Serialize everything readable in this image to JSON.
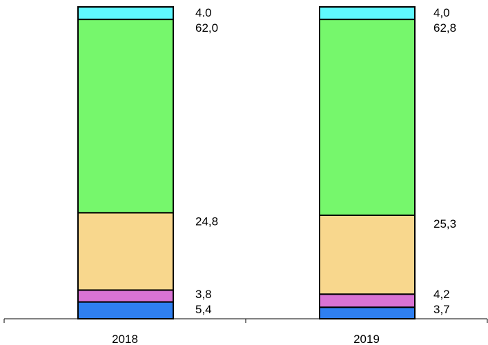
{
  "chart_data": {
    "type": "bar",
    "stacked": true,
    "orientation": "vertical",
    "categories": [
      "2018",
      "2019"
    ],
    "series": [
      {
        "color": "#2f7ff0",
        "values": [
          5.4,
          3.7
        ],
        "labels": [
          "5,4",
          "3,7"
        ]
      },
      {
        "color": "#d973d4",
        "values": [
          3.8,
          4.2
        ],
        "labels": [
          "3,8",
          "4,2"
        ]
      },
      {
        "color": "#f8d78d",
        "values": [
          24.8,
          25.3
        ],
        "labels": [
          "24,8",
          "25,3"
        ]
      },
      {
        "color": "#76f76c",
        "values": [
          62.0,
          62.8
        ],
        "labels": [
          "62,0",
          "62,8"
        ]
      },
      {
        "color": "#5ff9ff",
        "values": [
          4.0,
          4.0
        ],
        "labels": [
          "4.0",
          "4,0"
        ]
      }
    ],
    "ylim": [
      0,
      100
    ],
    "grid": false,
    "legend": "none",
    "title": "",
    "xlabel": "",
    "ylabel": ""
  }
}
